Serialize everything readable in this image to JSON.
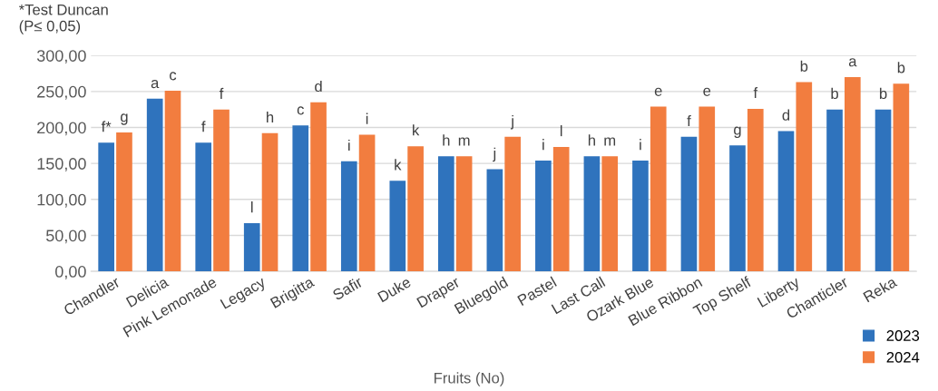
{
  "chart_data": {
    "type": "bar",
    "xlabel": "Fruits (No)",
    "annotations": [
      "*Test Duncan\n(P≤ 0,05)"
    ],
    "categories": [
      "Chandler",
      "Delicia",
      "Pink Lemonade",
      "Legacy",
      "Brigitta",
      "Safir",
      "Duke",
      "Draper",
      "Bluegold",
      "Pastel",
      "Last Call",
      "Ozark Blue",
      "Blue Ribbon",
      "Top Shelf",
      "Liberty",
      "Chanticler",
      "Reka"
    ],
    "series": [
      {
        "name": "2023",
        "color": "#2f73bd",
        "values": [
          179,
          240,
          179,
          67,
          203,
          153,
          126,
          160,
          142,
          154,
          160,
          154,
          187,
          175,
          195,
          225,
          225
        ],
        "value_labels": [
          "f*",
          "a",
          "f",
          "l",
          "c",
          "i",
          "k",
          "h",
          "j",
          "i",
          "h",
          "i",
          "f",
          "g",
          "d",
          "b",
          "b"
        ]
      },
      {
        "name": "2024",
        "color": "#f27d3f",
        "values": [
          193,
          251,
          225,
          192,
          235,
          190,
          174,
          160,
          187,
          173,
          160,
          229,
          229,
          226,
          263,
          270,
          261
        ],
        "value_labels": [
          "g",
          "c",
          "f",
          "h",
          "d",
          "i",
          "k",
          "m",
          "j",
          "l",
          "m",
          "e",
          "e",
          "f",
          "b",
          "a",
          "b"
        ]
      }
    ],
    "ylim": [
      0,
      300
    ],
    "yticks": [
      {
        "value": 0,
        "label": "0,00"
      },
      {
        "value": 50,
        "label": "50,00"
      },
      {
        "value": 100,
        "label": "100,00"
      },
      {
        "value": 150,
        "label": "150,00"
      },
      {
        "value": 200,
        "label": "200,00"
      },
      {
        "value": 250,
        "label": "250,00"
      },
      {
        "value": 300,
        "label": "300,00"
      }
    ],
    "grid": "y",
    "legend": "bottom right"
  }
}
